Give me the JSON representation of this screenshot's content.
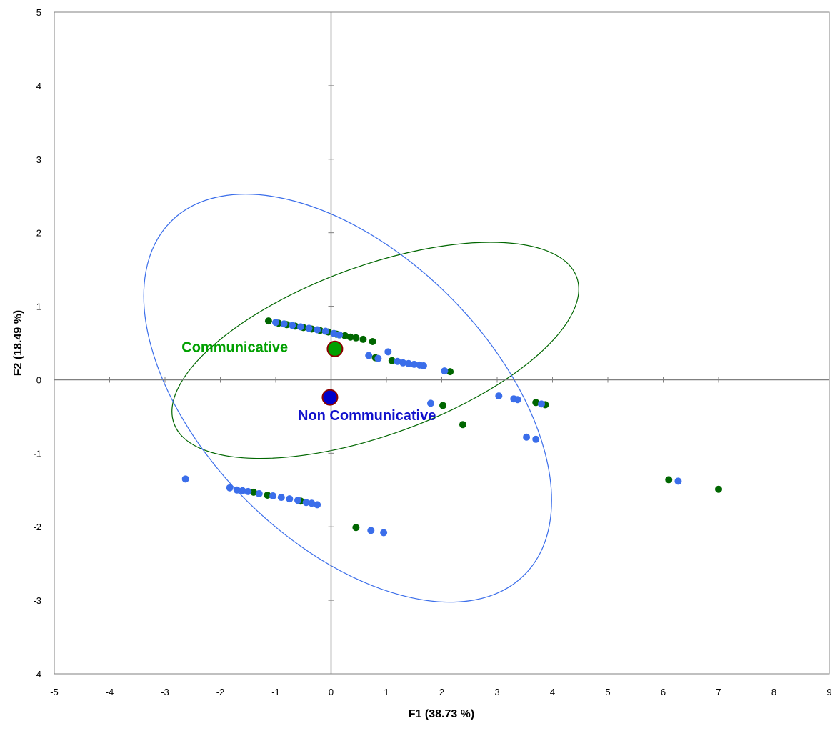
{
  "chart_data": {
    "type": "scatter",
    "title": "",
    "xlabel": "F1 (38.73 %)",
    "ylabel": "F2 (18.49 %)",
    "xlim": [
      -5,
      9
    ],
    "ylim": [
      -4,
      5
    ],
    "x_ticks": [
      -5,
      -4,
      -3,
      -2,
      -1,
      0,
      1,
      2,
      3,
      4,
      5,
      6,
      7,
      8,
      9
    ],
    "y_ticks": [
      -4,
      -3,
      -2,
      -1,
      0,
      1,
      2,
      3,
      4,
      5
    ],
    "grid": false,
    "legend": "none",
    "series": [
      {
        "key": "communicative",
        "color": "#006600",
        "points": [
          [
            -1.13,
            0.8
          ],
          [
            -0.95,
            0.77
          ],
          [
            -0.8,
            0.75
          ],
          [
            -0.65,
            0.73
          ],
          [
            -0.5,
            0.71
          ],
          [
            -0.35,
            0.69
          ],
          [
            -0.2,
            0.67
          ],
          [
            -0.05,
            0.65
          ],
          [
            0.1,
            0.62
          ],
          [
            0.25,
            0.6
          ],
          [
            0.35,
            0.58
          ],
          [
            0.45,
            0.57
          ],
          [
            0.58,
            0.55
          ],
          [
            0.75,
            0.52
          ],
          [
            0.8,
            0.3
          ],
          [
            1.1,
            0.26
          ],
          [
            2.15,
            0.11
          ],
          [
            2.02,
            -0.35
          ],
          [
            2.38,
            -0.61
          ],
          [
            3.7,
            -0.31
          ],
          [
            3.87,
            -0.34
          ],
          [
            6.1,
            -1.36
          ],
          [
            7.0,
            -1.49
          ],
          [
            -1.4,
            -1.53
          ],
          [
            -1.15,
            -1.57
          ],
          [
            -0.55,
            -1.65
          ],
          [
            0.45,
            -2.01
          ]
        ],
        "centroid": [
          0.07,
          0.42
        ],
        "centroid_color": "#00A000",
        "centroid_stroke": "#8B0000",
        "ellipse": {
          "cx": 0.8,
          "cy": 0.4,
          "rx": 3.87,
          "ry": 1.15,
          "rotation_deg": -20
        }
      },
      {
        "key": "non_communicative",
        "color": "#3B6EEA",
        "points": [
          [
            -1.0,
            0.78
          ],
          [
            -0.85,
            0.76
          ],
          [
            -0.7,
            0.74
          ],
          [
            -0.55,
            0.72
          ],
          [
            -0.4,
            0.7
          ],
          [
            -0.25,
            0.68
          ],
          [
            -0.1,
            0.66
          ],
          [
            0.05,
            0.63
          ],
          [
            0.15,
            0.61
          ],
          [
            0.68,
            0.33
          ],
          [
            0.85,
            0.29
          ],
          [
            1.03,
            0.38
          ],
          [
            1.2,
            0.25
          ],
          [
            1.3,
            0.23
          ],
          [
            1.4,
            0.22
          ],
          [
            1.5,
            0.21
          ],
          [
            1.6,
            0.2
          ],
          [
            1.67,
            0.19
          ],
          [
            2.05,
            0.12
          ],
          [
            1.8,
            -0.32
          ],
          [
            3.03,
            -0.22
          ],
          [
            3.3,
            -0.26
          ],
          [
            3.37,
            -0.27
          ],
          [
            3.8,
            -0.33
          ],
          [
            3.53,
            -0.78
          ],
          [
            3.7,
            -0.81
          ],
          [
            6.27,
            -1.38
          ],
          [
            -2.63,
            -1.35
          ],
          [
            -1.83,
            -1.47
          ],
          [
            -1.7,
            -1.5
          ],
          [
            -1.6,
            -1.51
          ],
          [
            -1.5,
            -1.52
          ],
          [
            -1.3,
            -1.55
          ],
          [
            -1.05,
            -1.58
          ],
          [
            -0.9,
            -1.6
          ],
          [
            -0.75,
            -1.62
          ],
          [
            -0.6,
            -1.64
          ],
          [
            -0.45,
            -1.67
          ],
          [
            -0.35,
            -1.68
          ],
          [
            -0.25,
            -1.7
          ],
          [
            0.72,
            -2.05
          ],
          [
            0.95,
            -2.08
          ]
        ],
        "centroid": [
          -0.02,
          -0.24
        ],
        "centroid_color": "#0000CC",
        "centroid_stroke": "#8B0000",
        "ellipse": {
          "cx": 0.3,
          "cy": -0.25,
          "rx": 2.6,
          "ry": 3.4,
          "rotation_deg": -45
        }
      }
    ],
    "annotations": [
      {
        "text": "Communicative",
        "x": -2.7,
        "y": 0.38,
        "color": "#00A000"
      },
      {
        "text": "Non Communicative",
        "x": -0.6,
        "y": -0.55,
        "color": "#1111CC"
      }
    ]
  }
}
